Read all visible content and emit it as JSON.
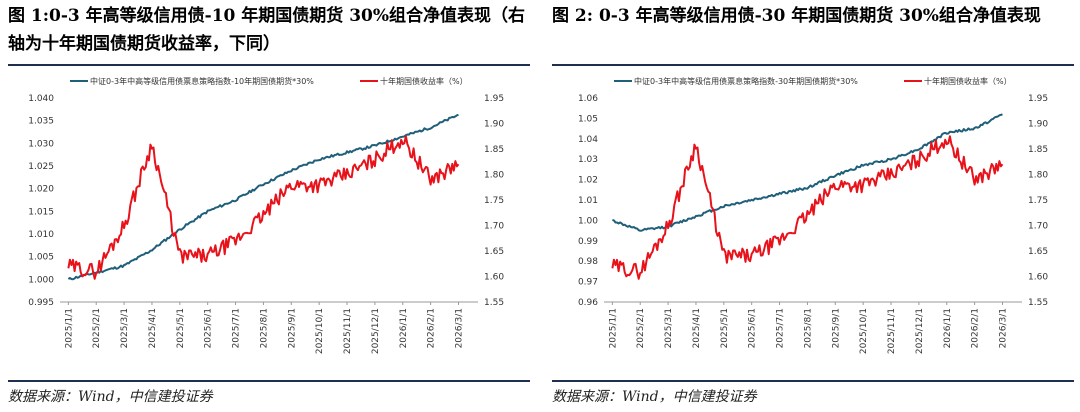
{
  "charts": [
    {
      "title": "图 1:0-3 年高等级信用债-10 年期国债期货 30%组合净值表现（右轴为十年期国债期货收益率，下同）",
      "source": "数据来源：Wind，中信建投证券"
    },
    {
      "title": "图 2: 0-3 年高等级信用债-30 年期国债期货 30%组合净值表现",
      "source": "数据来源：Wind，中信建投证券"
    }
  ],
  "colors": {
    "index": "#1f5f7a",
    "yield": "#e8121b",
    "axis": "#9a9a9a",
    "rule": "#1f2f4f"
  },
  "chart_data": [
    {
      "type": "line",
      "x": [
        "2025/1/1",
        "2025/2/1",
        "2025/3/1",
        "2025/4/1",
        "2025/5/1",
        "2025/6/1",
        "2025/7/1",
        "2025/8/1",
        "2025/9/1",
        "2025/10/1",
        "2025/11/1",
        "2025/12/1",
        "2026/1/1",
        "2026/2/1",
        "2026/3/1"
      ],
      "ylim_left": [
        0.995,
        1.04
      ],
      "yticks_left": [
        "0.995",
        "1.000",
        "1.005",
        "1.010",
        "1.015",
        "1.020",
        "1.025",
        "1.030",
        "1.035",
        "1.040"
      ],
      "ylim_right": [
        1.55,
        1.95
      ],
      "yticks_right": [
        "1.55",
        "1.60",
        "1.65",
        "1.70",
        "1.75",
        "1.80",
        "1.85",
        "1.90",
        "1.95"
      ],
      "legend_position": "top",
      "series": [
        {
          "name": "中证0-3年中高等级信用债票息策略指数-10年期国债期货*30%",
          "axis": "left",
          "values": [
            1.0,
            1.0015,
            1.003,
            1.0065,
            1.011,
            1.015,
            1.0175,
            1.021,
            1.024,
            1.0265,
            1.028,
            1.0295,
            1.0315,
            1.0335,
            1.0363
          ]
        },
        {
          "name": "十年期国债收益率（%）",
          "axis": "right",
          "values": [
            1.62,
            1.61,
            1.7,
            1.86,
            1.64,
            1.64,
            1.67,
            1.72,
            1.78,
            1.78,
            1.8,
            1.83,
            1.87,
            1.79,
            1.82
          ]
        }
      ]
    },
    {
      "type": "line",
      "x": [
        "2025/1/1",
        "2025/2/1",
        "2025/3/1",
        "2025/4/1",
        "2025/5/1",
        "2025/6/1",
        "2025/7/1",
        "2025/8/1",
        "2025/9/1",
        "2025/10/1",
        "2025/11/1",
        "2025/12/1",
        "2026/1/1",
        "2026/2/1",
        "2026/3/1"
      ],
      "ylim_left": [
        0.96,
        1.06
      ],
      "yticks_left": [
        "0.96",
        "0.97",
        "0.98",
        "0.99",
        "1.00",
        "1.01",
        "1.02",
        "1.03",
        "1.04",
        "1.05",
        "1.06"
      ],
      "ylim_right": [
        1.55,
        1.95
      ],
      "yticks_right": [
        "1.55",
        "1.60",
        "1.65",
        "1.70",
        "1.75",
        "1.80",
        "1.85",
        "1.90",
        "1.95"
      ],
      "legend_position": "top",
      "series": [
        {
          "name": "中证0-3年中高等级信用债票息策略指数-30年期国债期货*30%",
          "axis": "left",
          "values": [
            1.0,
            0.995,
            0.997,
            1.002,
            1.007,
            1.01,
            1.013,
            1.016,
            1.022,
            1.027,
            1.03,
            1.035,
            1.043,
            1.045,
            1.052
          ]
        },
        {
          "name": "十年期国债收益率（%）",
          "axis": "right",
          "values": [
            1.62,
            1.61,
            1.7,
            1.86,
            1.64,
            1.64,
            1.67,
            1.72,
            1.78,
            1.78,
            1.8,
            1.83,
            1.87,
            1.79,
            1.82
          ]
        }
      ]
    }
  ]
}
